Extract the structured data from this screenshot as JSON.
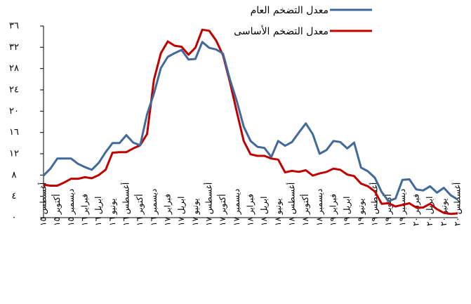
{
  "chart_data": {
    "type": "line",
    "categories": [
      "أغسطس ١٥",
      null,
      "أكتوبر ١٥",
      null,
      "ديسمبر ١٥",
      null,
      "فبراير ١٦",
      null,
      "ابريل ١٦",
      null,
      "يونيو ١٦",
      null,
      "أغسطس ١٦",
      null,
      "أكتوبر ١٦",
      null,
      "ديسمبر ١٦",
      null,
      "فبراير ١٧",
      null,
      "ابريل ١٧",
      null,
      "يونيو ١٧",
      null,
      "أغسطس ١٧",
      null,
      "أكتوبر ١٧",
      null,
      "ديسمبر ١٧",
      null,
      "فبراير ١٨",
      null,
      "ابريل ١٨",
      null,
      "يونيو ١٨",
      null,
      "أغسطس ١٨",
      null,
      "أكتوبر ١٨",
      null,
      "ديسمبر ١٨",
      null,
      "فبراير ١٩",
      null,
      "ابريل ١٩",
      null,
      "يونيو ١٩",
      null,
      "أغسطس ١٩",
      null,
      "أكتوبر ١٩",
      null,
      "ديسمبر ١٩",
      null,
      "فبراير ٢٠",
      null,
      "ابريل ٢٠",
      null,
      "يونيو ٢٠",
      null,
      "أغسطس ٢٠"
    ],
    "series": [
      {
        "name": "معدل التضخم العام",
        "color": "#41699a",
        "values": [
          7.9,
          9.2,
          11.1,
          11.1,
          11.1,
          10.1,
          9.5,
          9.0,
          10.3,
          12.3,
          14.0,
          14.0,
          15.5,
          14.1,
          13.6,
          19.4,
          23.3,
          28.1,
          30.2,
          30.9,
          31.5,
          29.7,
          29.8,
          33.0,
          31.9,
          31.6,
          30.8,
          26.0,
          21.9,
          17.1,
          14.4,
          13.3,
          13.1,
          11.4,
          14.4,
          13.5,
          14.2,
          16.0,
          17.7,
          15.7,
          12.0,
          12.7,
          14.4,
          14.2,
          13.0,
          14.1,
          9.4,
          8.7,
          7.5,
          4.8,
          3.1,
          3.6,
          7.1,
          7.2,
          5.3,
          5.1,
          5.9,
          4.7,
          5.6,
          4.2,
          3.4
        ]
      },
      {
        "name": "معدل التضخم الأساسى",
        "color": "#c00000",
        "values": [
          6.2,
          6.0,
          6.0,
          6.6,
          7.3,
          7.3,
          7.6,
          7.4,
          8.0,
          9.0,
          12.2,
          12.3,
          12.3,
          13.0,
          13.6,
          15.7,
          25.9,
          30.9,
          33.1,
          32.3,
          32.1,
          30.6,
          31.9,
          35.3,
          35.1,
          33.3,
          30.5,
          25.5,
          19.9,
          14.4,
          11.9,
          11.6,
          11.6,
          11.1,
          10.9,
          8.5,
          8.8,
          8.6,
          8.9,
          7.9,
          8.3,
          8.6,
          9.2,
          9.0,
          8.1,
          7.8,
          6.4,
          5.9,
          4.9,
          2.6,
          2.7,
          2.1,
          2.4,
          2.7,
          1.9,
          1.9,
          2.6,
          1.6,
          0.9,
          0.7,
          0.8
        ]
      }
    ],
    "ylim": [
      0,
      36
    ],
    "yticks": [
      {
        "value": 0,
        "label": "٠"
      },
      {
        "value": 4,
        "label": "٤"
      },
      {
        "value": 8,
        "label": "٨"
      },
      {
        "value": 12,
        "label": "١٢"
      },
      {
        "value": 16,
        "label": "١٦"
      },
      {
        "value": 20,
        "label": "٢٠"
      },
      {
        "value": 24,
        "label": "٢٤"
      },
      {
        "value": 28,
        "label": "٢٨"
      },
      {
        "value": 32,
        "label": "٣٢"
      },
      {
        "value": 36,
        "label": "٣٦"
      }
    ]
  }
}
